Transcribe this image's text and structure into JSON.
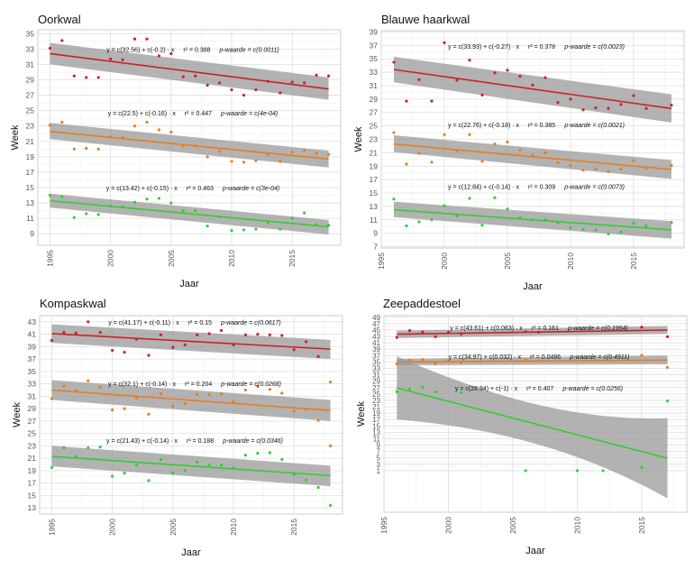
{
  "figure": {
    "xlabel": "Jaar",
    "ylabel": "Week"
  },
  "colors": {
    "series1": "#cc2222",
    "series2": "#e87d1e",
    "series3": "#33cc33",
    "ribbon": "#999999",
    "grid": "#e6e6e6",
    "panel_border": "#cccccc"
  },
  "chart_data": [
    {
      "type": "scatter",
      "title": "Oorkwal",
      "xlabel": "Jaar",
      "ylabel": "Week",
      "xlim": [
        1994,
        2019
      ],
      "ylim": [
        7.5,
        35.5
      ],
      "xticks": [
        1995,
        2000,
        2005,
        2010,
        2015
      ],
      "yticks": [
        9,
        11,
        13,
        15,
        17,
        19,
        21,
        23,
        25,
        27,
        29,
        31,
        33,
        35
      ],
      "grid": true,
      "series": [
        {
          "name": "series1",
          "color": "#cc2222",
          "equation": "y = c(32.56) + c(-0.2) · x",
          "r2": "r² = 0.388",
          "p": "p-waarde = c(0.0011)",
          "label_y": 33,
          "fit": {
            "x0": 1995,
            "x1": 2018,
            "y0": 32.4,
            "y1": 27.8,
            "lo0": 31.0,
            "hi0": 33.8,
            "lo1": 26.4,
            "hi1": 29.3
          },
          "x": [
            1995,
            1996,
            1997,
            1998,
            1999,
            2000,
            2001,
            2002,
            2003,
            2004,
            2005,
            2006,
            2007,
            2008,
            2009,
            2010,
            2011,
            2012,
            2013,
            2014,
            2015,
            2016,
            2017,
            2018
          ],
          "y": [
            33.1,
            34.1,
            29.5,
            29.3,
            29.3,
            31.7,
            31.6,
            34.3,
            34.3,
            32.1,
            32.4,
            29.4,
            29.5,
            28.3,
            28.6,
            27.7,
            27.0,
            27.7,
            28.8,
            27.3,
            28.7,
            28.6,
            29.6,
            29.5
          ]
        },
        {
          "name": "series2",
          "color": "#e87d1e",
          "equation": "y = c(22.5) + c(-0.16) · x",
          "r2": "r² = 0.447",
          "p": "p-waarde = c(4e-04)",
          "label_y": 24.7,
          "fit": {
            "x0": 1995,
            "x1": 2018,
            "y0": 22.3,
            "y1": 18.7,
            "lo0": 21.3,
            "hi0": 23.4,
            "lo1": 17.6,
            "hi1": 19.8
          },
          "x": [
            1995,
            1996,
            1997,
            1998,
            1999,
            2000,
            2001,
            2002,
            2003,
            2004,
            2005,
            2006,
            2007,
            2008,
            2009,
            2010,
            2011,
            2012,
            2013,
            2014,
            2015,
            2016,
            2017,
            2018
          ],
          "y": [
            23.1,
            23.5,
            20.0,
            20.1,
            20.0,
            21.6,
            21.5,
            23.0,
            23.5,
            22.5,
            22.2,
            20.4,
            20.4,
            19.0,
            19.7,
            18.4,
            18.3,
            18.5,
            19.3,
            18.4,
            19.6,
            19.8,
            19.5,
            19.3
          ]
        },
        {
          "name": "series3",
          "color": "#33cc33",
          "equation": "y = c(13.42) + c(-0.15) · x",
          "r2": "r² = 0.463",
          "p": "p-waarde = c(3e-04)",
          "label_y": 15,
          "fit": {
            "x0": 1995,
            "x1": 2018,
            "y0": 13.3,
            "y1": 9.9,
            "lo0": 12.4,
            "hi0": 14.2,
            "lo1": 8.9,
            "hi1": 10.8
          },
          "x": [
            1995,
            1996,
            1997,
            1998,
            1999,
            2000,
            2001,
            2002,
            2003,
            2004,
            2005,
            2006,
            2007,
            2008,
            2009,
            2010,
            2011,
            2012,
            2013,
            2014,
            2015,
            2016,
            2017,
            2018
          ],
          "y": [
            14.0,
            13.8,
            11.1,
            11.6,
            11.5,
            12.6,
            12.5,
            13.1,
            13.5,
            13.6,
            13.0,
            12.0,
            12.0,
            10.0,
            11.2,
            9.4,
            9.5,
            9.6,
            10.4,
            9.6,
            11.0,
            11.7,
            10.2,
            10.1
          ]
        }
      ]
    },
    {
      "type": "scatter",
      "title": "Blauwe haarkwal",
      "xlabel": "Jaar",
      "ylabel": "Week",
      "xlim": [
        1995,
        2019
      ],
      "ylim": [
        6.8,
        39.2
      ],
      "xticks": [
        1995,
        2000,
        2005,
        2010,
        2015
      ],
      "yticks": [
        7,
        9,
        11,
        13,
        15,
        17,
        19,
        21,
        23,
        25,
        27,
        29,
        31,
        33,
        35,
        37,
        39
      ],
      "grid": true,
      "series": [
        {
          "name": "series1",
          "color": "#cc2222",
          "equation": "y = c(33.93) + c(-0.27) · x",
          "r2": "r² = 0.378",
          "p": "p-waarde = c(0.0023)",
          "label_y": 36.9,
          "fit": {
            "x0": 1996,
            "x1": 2018,
            "y0": 33.4,
            "y1": 27.6,
            "lo0": 31.5,
            "hi0": 35.3,
            "lo1": 25.5,
            "hi1": 29.7
          },
          "x": [
            1996,
            1997,
            1998,
            1999,
            2000,
            2001,
            2002,
            2003,
            2004,
            2005,
            2006,
            2007,
            2008,
            2009,
            2010,
            2011,
            2012,
            2013,
            2014,
            2015,
            2016,
            2018
          ],
          "y": [
            34.5,
            28.7,
            31.9,
            28.7,
            37.4,
            31.8,
            34.8,
            29.6,
            32.9,
            33.3,
            32.4,
            31.1,
            32.2,
            28.5,
            29.0,
            27.4,
            27.7,
            27.6,
            28.2,
            29.5,
            27.6,
            28.1
          ]
        },
        {
          "name": "series2",
          "color": "#e87d1e",
          "equation": "y = c(22.76) + c(-0.18) · x",
          "r2": "r² = 0.385",
          "p": "p-waarde = c(0.0021)",
          "label_y": 25.2,
          "fit": {
            "x0": 1996,
            "x1": 2018,
            "y0": 22.3,
            "y1": 18.5,
            "lo0": 21.1,
            "hi0": 23.6,
            "lo1": 17.1,
            "hi1": 19.9
          },
          "x": [
            1996,
            1997,
            1998,
            1999,
            2000,
            2001,
            2002,
            2003,
            2004,
            2005,
            2006,
            2007,
            2008,
            2009,
            2010,
            2011,
            2012,
            2013,
            2014,
            2015,
            2016,
            2018
          ],
          "y": [
            24.0,
            19.3,
            20.9,
            19.6,
            23.7,
            21.3,
            23.7,
            19.7,
            22.3,
            22.6,
            21.4,
            20.6,
            21.0,
            19.5,
            19.1,
            18.4,
            18.6,
            18.2,
            18.6,
            19.8,
            18.7,
            19.1
          ]
        },
        {
          "name": "series3",
          "color": "#33cc33",
          "equation": "y = c(12.84) + c(-0.14) · x",
          "r2": "r² = 0.309",
          "p": "p-waarde = c(0.0073)",
          "label_y": 16.0,
          "fit": {
            "x0": 1996,
            "x1": 2018,
            "y0": 12.5,
            "y1": 9.5,
            "lo0": 11.4,
            "hi0": 13.7,
            "lo1": 8.2,
            "hi1": 10.8
          },
          "x": [
            1996,
            1997,
            1998,
            1999,
            2000,
            2001,
            2002,
            2003,
            2004,
            2005,
            2006,
            2007,
            2008,
            2009,
            2010,
            2011,
            2012,
            2013,
            2014,
            2015,
            2016,
            2018
          ],
          "y": [
            14.1,
            10.1,
            10.7,
            11.0,
            13.1,
            11.6,
            14.2,
            10.2,
            14.3,
            12.6,
            11.3,
            11.0,
            11.0,
            10.6,
            9.8,
            9.6,
            9.5,
            8.9,
            9.2,
            10.5,
            10.1,
            10.6
          ]
        }
      ]
    },
    {
      "type": "scatter",
      "title": "Kompaskwal",
      "xlabel": "Jaar",
      "ylabel": "Week",
      "xlim": [
        1994,
        2019
      ],
      "ylim": [
        12,
        44
      ],
      "xticks": [
        1995,
        2000,
        2005,
        2010,
        2015
      ],
      "yticks": [
        13,
        15,
        17,
        19,
        21,
        23,
        25,
        27,
        29,
        31,
        33,
        35,
        37,
        39,
        41,
        43
      ],
      "grid": true,
      "series": [
        {
          "name": "series1",
          "color": "#cc2222",
          "equation": "y = c(41.17) + c(-0.11) · x",
          "r2": "r² = 0.15",
          "p": "p-waarde = c(0.0617)",
          "label_y": 43,
          "fit": {
            "x0": 1995,
            "x1": 2018,
            "y0": 41.1,
            "y1": 38.6,
            "lo0": 39.6,
            "hi0": 42.6,
            "lo1": 37.0,
            "hi1": 40.1
          },
          "x": [
            1995,
            1996,
            1997,
            1998,
            1999,
            2000,
            2001,
            2002,
            2003,
            2004,
            2005,
            2006,
            2007,
            2008,
            2009,
            2010,
            2011,
            2012,
            2013,
            2014,
            2015,
            2016,
            2017
          ],
          "y": [
            40.0,
            41.3,
            41.2,
            43.0,
            41.3,
            38.4,
            38.1,
            40.2,
            37.6,
            40.9,
            38.9,
            39.3,
            40.9,
            41.1,
            41.6,
            39.3,
            40.9,
            41.0,
            40.9,
            40.8,
            38.5,
            39.8,
            37.4
          ]
        },
        {
          "name": "series2",
          "color": "#e87d1e",
          "equation": "y = c(32.1) + c(-0.14) · x",
          "r2": "r² = 0.204",
          "p": "p-waarde = c(0.0268)",
          "label_y": 33.1,
          "fit": {
            "x0": 1995,
            "x1": 2018,
            "y0": 32.0,
            "y1": 28.7,
            "lo0": 30.4,
            "hi0": 33.6,
            "lo1": 27.0,
            "hi1": 30.4
          },
          "x": [
            1995,
            1996,
            1997,
            1998,
            1999,
            2000,
            2001,
            2002,
            2003,
            2004,
            2005,
            2006,
            2007,
            2008,
            2009,
            2010,
            2011,
            2012,
            2013,
            2014,
            2015,
            2016,
            2017,
            2018
          ],
          "y": [
            30.6,
            32.6,
            31.9,
            33.5,
            32.5,
            28.8,
            29.0,
            30.7,
            28.1,
            31.4,
            29.4,
            29.8,
            31.3,
            31.3,
            31.4,
            30.1,
            32.0,
            32.6,
            32.1,
            31.5,
            28.6,
            28.9,
            27.1,
            33.3
          ]
        },
        {
          "name": "series3",
          "color": "#33cc33",
          "equation": "y = c(21.43) + c(-0.14) · x",
          "r2": "r² = 0.188",
          "p": "p-waarde = c(0.0346)",
          "label_y": 23.9,
          "fit": {
            "x0": 1995,
            "x1": 2018,
            "y0": 21.3,
            "y1": 18.2,
            "lo0": 19.7,
            "hi0": 23.0,
            "lo1": 16.5,
            "hi1": 19.8
          },
          "x": [
            1995,
            1996,
            1997,
            1998,
            1999,
            2000,
            2001,
            2002,
            2003,
            2004,
            2005,
            2006,
            2007,
            2008,
            2009,
            2010,
            2011,
            2012,
            2013,
            2014,
            2015,
            2016,
            2017,
            2018
          ],
          "y": [
            19.5,
            22.7,
            21.3,
            22.7,
            22.8,
            18.1,
            18.6,
            19.9,
            17.4,
            20.8,
            18.6,
            19.0,
            20.4,
            19.9,
            19.9,
            19.4,
            21.5,
            21.8,
            21.9,
            20.8,
            18.4,
            17.5,
            16.3,
            13.4
          ]
        },
        {
          "name": "series2-extra",
          "color": "#e87d1e",
          "equation": "",
          "r2": "",
          "p": "",
          "x": [
            2018
          ],
          "y": [
            23.0
          ]
        }
      ]
    },
    {
      "type": "scatter",
      "title": "Zeepaddestoel",
      "xlabel": "Jaar",
      "ylabel": "Week",
      "xlim": [
        1995,
        2018.5
      ],
      "ylim": [
        -12,
        49.5
      ],
      "xticks": [
        1995,
        2000,
        2005,
        2010,
        2015
      ],
      "yticks": [
        1,
        3,
        5,
        7,
        9,
        11,
        13,
        15,
        17,
        19,
        21,
        23,
        25,
        27,
        29,
        31,
        33,
        35,
        37,
        39,
        41,
        43,
        45,
        47,
        49
      ],
      "grid": true,
      "series": [
        {
          "name": "series1",
          "color": "#cc2222",
          "equation": "y = c(43.61) + c(0.063) · x",
          "r2": "r² = 0.161",
          "p": "p-waarde = c(0.1954)",
          "label_y": 45.8,
          "fit": {
            "x0": 1996,
            "x1": 2017,
            "y0": 43.7,
            "y1": 45.0,
            "lo0": 42.5,
            "hi0": 44.8,
            "lo1": 43.8,
            "hi1": 46.3
          },
          "x": [
            1996,
            1997,
            1998,
            1999,
            2000,
            2001,
            2006,
            2007,
            2015,
            2017
          ],
          "y": [
            42.7,
            44.8,
            44.4,
            42.9,
            44.3,
            43.8,
            44.5,
            44.3,
            45.9,
            42.9
          ]
        },
        {
          "name": "series2",
          "color": "#e87d1e",
          "equation": "y = c(34.97) + c(0.032) · x",
          "r2": "r² = 0.0486",
          "p": "p-waarde = c(0.4911)",
          "label_y": 36.8,
          "fit": {
            "x0": 1996,
            "x1": 2017,
            "y0": 35.0,
            "y1": 35.6,
            "lo0": 34.0,
            "hi0": 36.0,
            "lo1": 34.3,
            "hi1": 37.0
          },
          "x": [
            1996,
            1997,
            1998,
            1999,
            2000,
            2001,
            2006,
            2007,
            2015,
            2017
          ],
          "y": [
            34.4,
            35.6,
            35.8,
            34.4,
            35.4,
            34.8,
            35.7,
            35.4,
            37.1,
            33.3
          ]
        },
        {
          "name": "series3",
          "color": "#33cc33",
          "equation": "y = c(28.94) + c(-1) · x",
          "r2": "r² = 0.407",
          "p": "p-waarde = c(0.0256)",
          "label_y": 27,
          "fit": {
            "x0": 1996,
            "x1": 2017,
            "y0": 26.9,
            "y1": 4.9,
            "lo0": 17.0,
            "hi0": 36.8,
            "lo1": -7.7,
            "hi1": 17.4,
            "curved": true
          },
          "x": [
            1996,
            1997,
            1998,
            1999,
            2001,
            2006,
            2010,
            2012,
            2015,
            2017
          ],
          "y": [
            25.7,
            26.5,
            27.1,
            25.7,
            25.4,
            1.0,
            1.0,
            1.0,
            2.0,
            22.8
          ]
        }
      ]
    }
  ]
}
